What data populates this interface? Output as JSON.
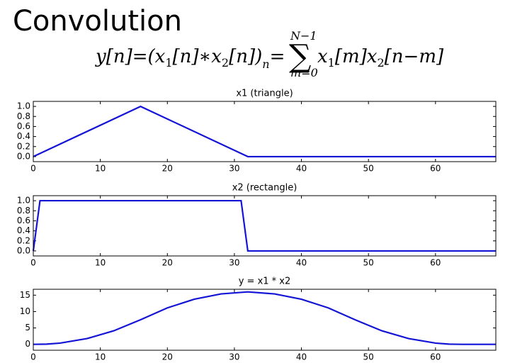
{
  "title": "Convolution",
  "formula": {
    "left": [
      "y[n]=(x",
      "1",
      "[n]∗x",
      "2",
      "[n])",
      "n",
      "="
    ],
    "sum": "∑",
    "upper": "N−1",
    "lower": "m=0",
    "right": [
      "x",
      "1",
      "[m]x",
      "2",
      "[n−m]"
    ]
  },
  "chart_data": [
    {
      "type": "line",
      "title": "x1 (triangle)",
      "x": [
        0,
        16,
        32,
        69
      ],
      "series": [
        {
          "color": "#1414d6",
          "values": [
            0,
            1,
            0,
            0
          ]
        }
      ],
      "xlim": [
        0,
        69
      ],
      "ylim": [
        -0.1,
        1.1
      ],
      "xticks": [
        0,
        10,
        20,
        30,
        40,
        50,
        60
      ],
      "yticks": [
        {
          "value": 0,
          "label": "0.0"
        },
        0.2,
        0.4,
        0.6,
        0.8,
        {
          "value": 1,
          "label": "1.0"
        }
      ]
    },
    {
      "type": "line",
      "title": "x2 (rectangle)",
      "x": [
        0,
        1,
        31,
        32,
        69
      ],
      "series": [
        {
          "color": "#1414d6",
          "values": [
            0,
            1,
            1,
            0,
            0
          ]
        }
      ],
      "xlim": [
        0,
        69
      ],
      "ylim": [
        -0.1,
        1.1
      ],
      "xticks": [
        0,
        10,
        20,
        30,
        40,
        50,
        60
      ],
      "yticks": [
        {
          "value": 0,
          "label": "0.0"
        },
        0.2,
        0.4,
        0.6,
        0.8,
        {
          "value": 1,
          "label": "1.0"
        }
      ]
    },
    {
      "type": "line",
      "title": "y = x1 * x2",
      "x": [
        0,
        2,
        4,
        8,
        12,
        16,
        20,
        24,
        28,
        32,
        36,
        40,
        44,
        48,
        52,
        56,
        60,
        62,
        64,
        69
      ],
      "series": [
        {
          "color": "#1414d6",
          "values": [
            0,
            0.06,
            0.375,
            1.75,
            4.125,
            7.5,
            11.125,
            13.75,
            15.375,
            16,
            15.375,
            13.75,
            11.125,
            7.5,
            4.125,
            1.75,
            0.375,
            0.06,
            0,
            0
          ]
        }
      ],
      "xlim": [
        0,
        69
      ],
      "ylim": [
        -1.8,
        16.8
      ],
      "xticks": [
        0,
        10,
        20,
        30,
        40,
        50,
        60
      ],
      "yticks": [
        0,
        5,
        10,
        15
      ]
    }
  ]
}
